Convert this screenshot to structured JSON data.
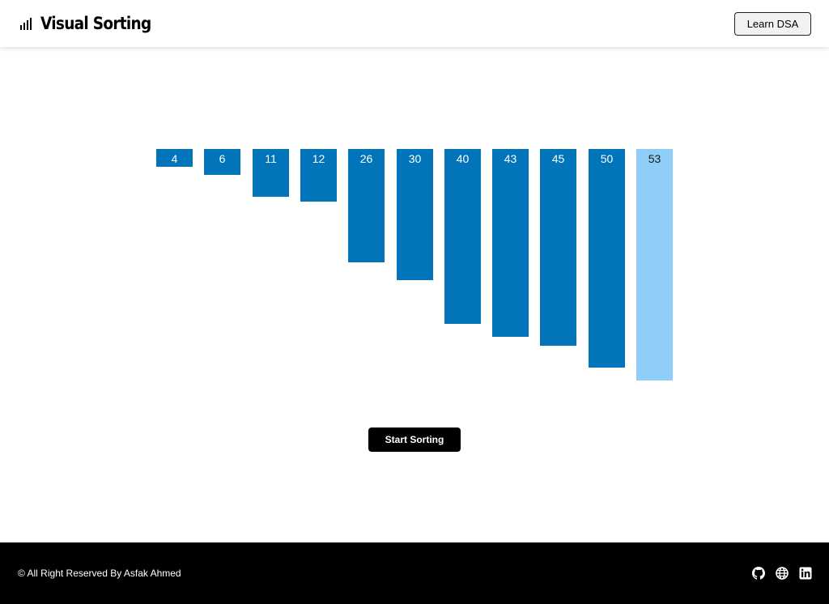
{
  "header": {
    "icon": "bar-chart-icon",
    "title": "Visual Sorting",
    "learn_label": "Learn DSA"
  },
  "chart_data": {
    "type": "bar",
    "values": [
      4,
      6,
      11,
      12,
      26,
      30,
      40,
      43,
      45,
      50,
      53
    ],
    "active_index": 10,
    "bar_color": "#0174ba",
    "active_color": "#8ecdf8",
    "grid": false
  },
  "controls": {
    "start_label": "Start Sorting"
  },
  "footer": {
    "copyright": "© All Right Reserved By Asfak Ahmed",
    "icons": [
      "github-icon",
      "globe-icon",
      "linkedin-icon"
    ]
  }
}
